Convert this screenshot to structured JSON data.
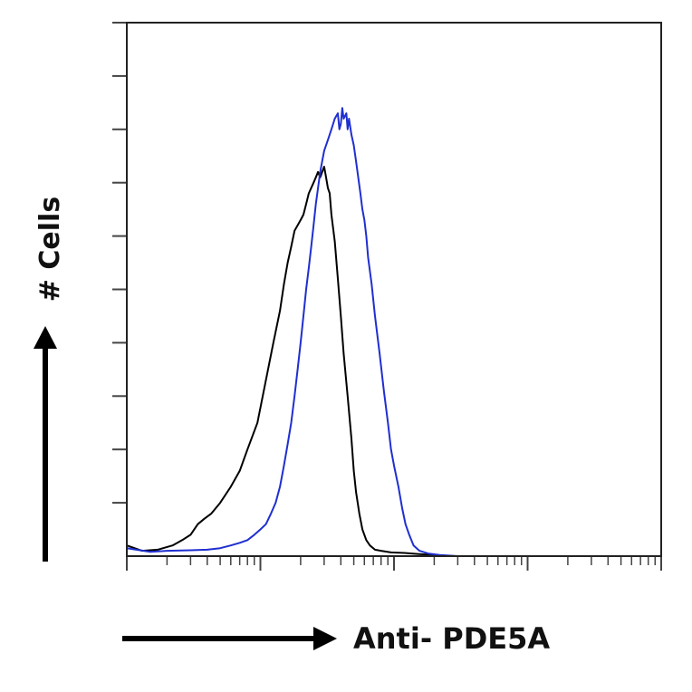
{
  "chart_data": {
    "type": "line",
    "title": "",
    "xlabel": "Anti- PDE5A",
    "ylabel": "# Cells",
    "x_scale": "log",
    "xlim": [
      1,
      10000
    ],
    "ylim": [
      0,
      100
    ],
    "y_tick_count": 10,
    "grid": false,
    "legend": "none",
    "series": [
      {
        "color": "#000000",
        "points": [
          [
            1,
            2
          ],
          [
            1.3,
            1
          ],
          [
            1.7,
            1.2
          ],
          [
            2.2,
            2
          ],
          [
            2.6,
            3
          ],
          [
            3,
            4
          ],
          [
            3.4,
            6
          ],
          [
            3.8,
            7
          ],
          [
            4.3,
            8
          ],
          [
            5,
            10
          ],
          [
            6,
            13
          ],
          [
            7,
            16
          ],
          [
            8,
            20
          ],
          [
            9.5,
            25
          ],
          [
            11,
            33
          ],
          [
            12.5,
            40
          ],
          [
            14,
            46
          ],
          [
            15,
            51
          ],
          [
            16,
            55
          ],
          [
            17,
            58
          ],
          [
            18,
            61
          ],
          [
            19,
            62
          ],
          [
            20,
            63
          ],
          [
            21,
            64
          ],
          [
            22,
            66
          ],
          [
            23,
            68
          ],
          [
            25,
            70
          ],
          [
            26,
            71
          ],
          [
            27,
            72
          ],
          [
            28,
            71
          ],
          [
            29,
            72
          ],
          [
            30,
            73
          ],
          [
            31,
            71
          ],
          [
            32,
            69
          ],
          [
            33,
            68
          ],
          [
            34,
            64
          ],
          [
            36,
            59
          ],
          [
            38,
            52
          ],
          [
            40,
            45
          ],
          [
            42,
            38
          ],
          [
            45,
            30
          ],
          [
            48,
            22
          ],
          [
            50,
            16
          ],
          [
            52,
            12
          ],
          [
            55,
            8
          ],
          [
            58,
            5
          ],
          [
            62,
            3
          ],
          [
            66,
            2
          ],
          [
            72,
            1.2
          ],
          [
            80,
            1
          ],
          [
            95,
            0.7
          ],
          [
            120,
            0.6
          ],
          [
            150,
            0.4
          ],
          [
            200,
            0.2
          ],
          [
            280,
            0
          ]
        ]
      },
      {
        "color": "#1f2fd0",
        "points": [
          [
            1,
            1.5
          ],
          [
            1.5,
            0.8
          ],
          [
            2,
            1
          ],
          [
            3,
            1.1
          ],
          [
            4,
            1.2
          ],
          [
            5,
            1.5
          ],
          [
            6,
            2
          ],
          [
            7,
            2.5
          ],
          [
            8,
            3
          ],
          [
            9,
            4
          ],
          [
            10,
            5
          ],
          [
            11,
            6
          ],
          [
            12,
            8
          ],
          [
            13,
            10
          ],
          [
            14,
            13
          ],
          [
            15,
            17
          ],
          [
            16,
            21
          ],
          [
            17,
            25
          ],
          [
            18,
            30
          ],
          [
            19,
            35
          ],
          [
            20,
            40
          ],
          [
            21,
            45
          ],
          [
            22,
            50
          ],
          [
            23,
            54
          ],
          [
            24,
            58
          ],
          [
            25,
            62
          ],
          [
            26,
            66
          ],
          [
            27,
            69
          ],
          [
            28,
            72
          ],
          [
            29,
            74
          ],
          [
            30,
            76
          ],
          [
            32,
            78
          ],
          [
            34,
            80
          ],
          [
            36,
            82
          ],
          [
            38,
            83
          ],
          [
            39,
            80
          ],
          [
            40,
            81
          ],
          [
            41,
            84
          ],
          [
            42,
            82
          ],
          [
            44,
            83
          ],
          [
            45,
            80
          ],
          [
            46,
            82
          ],
          [
            48,
            79
          ],
          [
            50,
            77
          ],
          [
            52,
            74
          ],
          [
            54,
            71
          ],
          [
            56,
            68
          ],
          [
            58,
            65
          ],
          [
            60,
            63
          ],
          [
            62,
            60
          ],
          [
            64,
            56
          ],
          [
            68,
            51
          ],
          [
            72,
            45
          ],
          [
            78,
            38
          ],
          [
            84,
            31
          ],
          [
            90,
            25
          ],
          [
            95,
            20
          ],
          [
            100,
            17
          ],
          [
            108,
            13
          ],
          [
            115,
            9
          ],
          [
            122,
            6
          ],
          [
            130,
            4
          ],
          [
            140,
            2
          ],
          [
            155,
            1
          ],
          [
            180,
            0.5
          ],
          [
            220,
            0.2
          ],
          [
            300,
            0
          ]
        ]
      }
    ]
  }
}
